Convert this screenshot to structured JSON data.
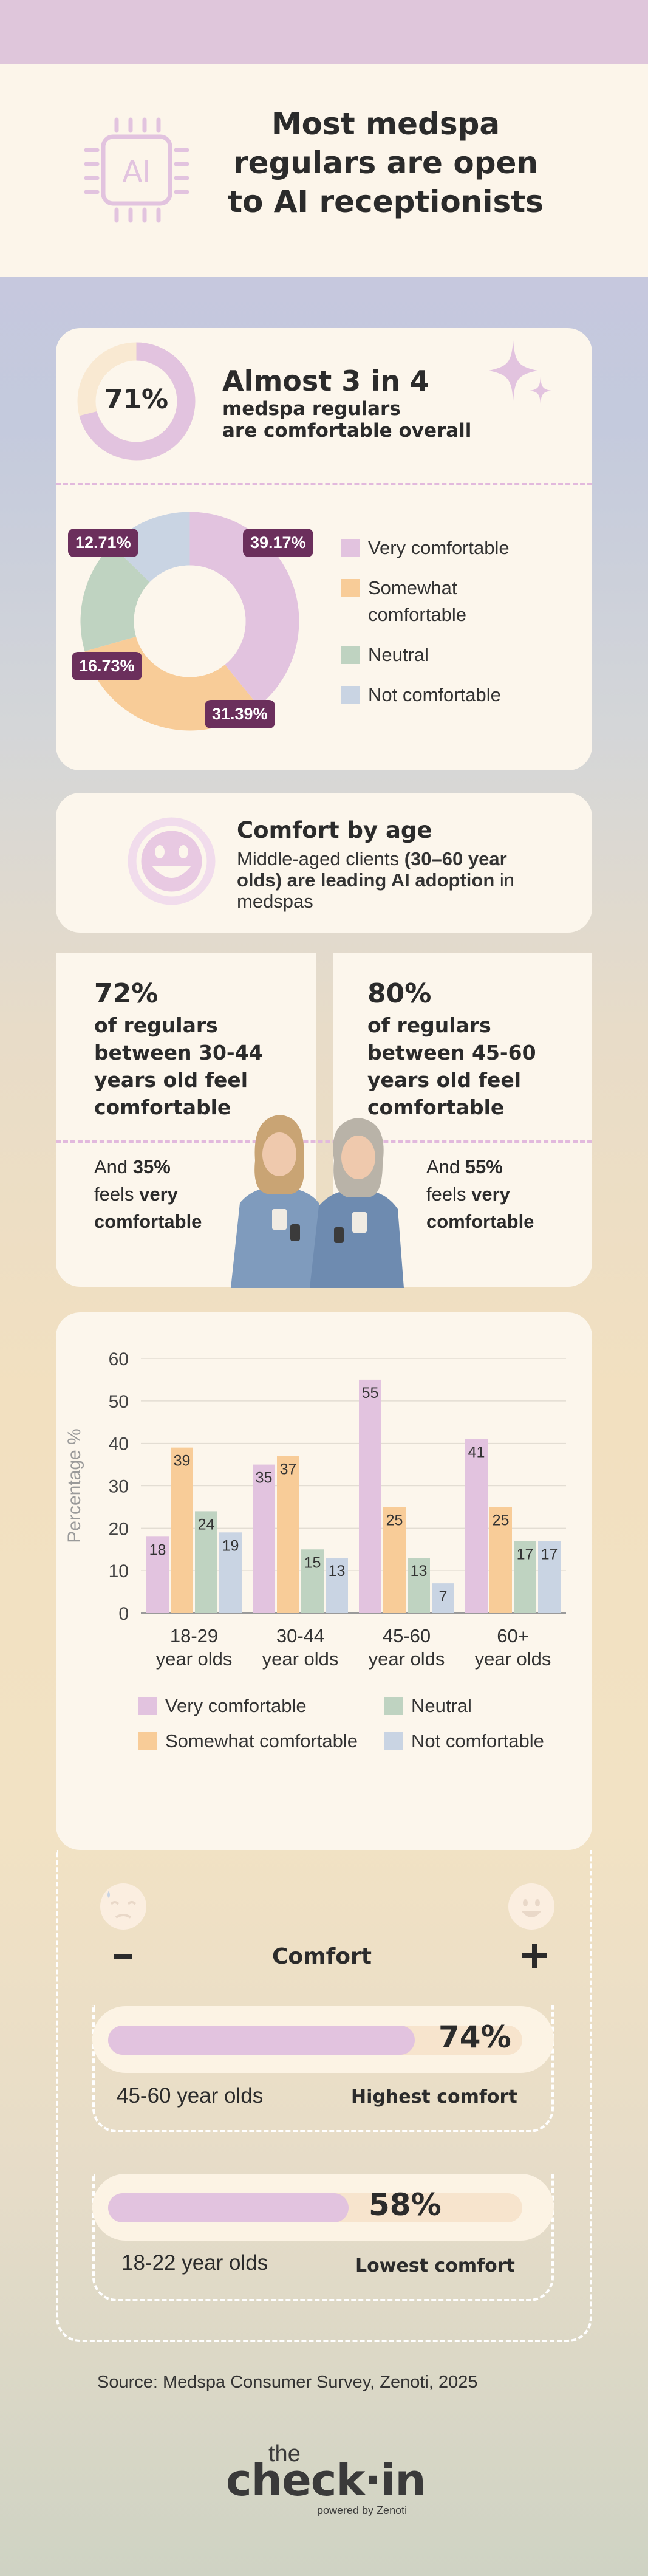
{
  "header": {
    "title_line1": "Most medspa",
    "title_line2": "regulars are open",
    "title_line3": "to AI receptionists",
    "chip_text": "AI"
  },
  "overall": {
    "gauge_value": "71%",
    "gauge_fraction": 0.71,
    "headline": "Almost 3 in 4",
    "sub_line1": "medspa regulars",
    "sub_line2": "are comfortable overall"
  },
  "colors": {
    "very": "#e2c3df",
    "somewhat": "#f8cc98",
    "neutral": "#bfd3c1",
    "not": "#c9d4e3",
    "label_bg": "#6b2f5c",
    "dark": "#2b2b2b"
  },
  "chart_data": [
    {
      "type": "pie",
      "categories": [
        "Very comfortable",
        "Somewhat comfortable",
        "Neutral",
        "Not comfortable"
      ],
      "values": [
        39.17,
        31.39,
        16.73,
        12.71
      ],
      "labels": [
        "39.17%",
        "31.39%",
        "16.73%",
        "12.71%"
      ],
      "legend": [
        "Very comfortable",
        "Somewhat",
        "comfortable",
        "Neutral",
        "Not comfortable"
      ],
      "legend_position": "right"
    },
    {
      "type": "bar",
      "categories": [
        "18-29 year olds",
        "30-44 year olds",
        "45-60 year olds",
        "60+ year olds"
      ],
      "category_lines": [
        [
          "18-29",
          "year olds"
        ],
        [
          "30-44",
          "year olds"
        ],
        [
          "45-60",
          "year olds"
        ],
        [
          "60+",
          "year olds"
        ]
      ],
      "series": [
        {
          "name": "Very comfortable",
          "values": [
            18,
            35,
            55,
            41
          ]
        },
        {
          "name": "Somewhat comfortable",
          "values": [
            39,
            37,
            25,
            25
          ]
        },
        {
          "name": "Neutral",
          "values": [
            24,
            15,
            13,
            17
          ]
        },
        {
          "name": "Not comfortable",
          "values": [
            19,
            13,
            7,
            17
          ]
        }
      ],
      "ylabel": "Percentage %",
      "ylim": [
        0,
        60
      ],
      "yticks": [
        0,
        10,
        20,
        30,
        40,
        50,
        60
      ],
      "grid": true,
      "legend_position": "bottom"
    }
  ],
  "age": {
    "title": "Comfort by age",
    "desc_pre": "Middle-aged clients ",
    "desc_bold": "(30–60 year olds) are leading AI adoption",
    "desc_post": " in medspas"
  },
  "stats": {
    "left": {
      "pct": "72%",
      "l1": "of regulars",
      "l2": "between 30-44",
      "l3": "years old feel",
      "l4": "comfortable",
      "and": "And ",
      "and_pct": "35%",
      "feels": "feels ",
      "very": "very",
      "comfortable": "comfortable"
    },
    "right": {
      "pct": "80%",
      "l1": "of regulars",
      "l2": "between 45-60",
      "l3": "years old feel",
      "l4": "comfortable",
      "and": "And ",
      "and_pct": "55%",
      "feels": "feels ",
      "very": "very",
      "comfortable": "comfortable"
    }
  },
  "comfort_scale": {
    "label": "Comfort",
    "minus": "−",
    "plus": "+",
    "bars": [
      {
        "pct_text": "74%",
        "value": 0.74,
        "age": "45-60 year olds",
        "rank": "Highest comfort"
      },
      {
        "pct_text": "58%",
        "value": 0.58,
        "age": "18-22 year olds",
        "rank": "Lowest comfort"
      }
    ]
  },
  "footer": {
    "source": "Source: Medspa Consumer Survey, Zenoti, 2025",
    "logo_the": "the",
    "logo_main": "check·in",
    "logo_sub": "powered by Zenoti"
  }
}
